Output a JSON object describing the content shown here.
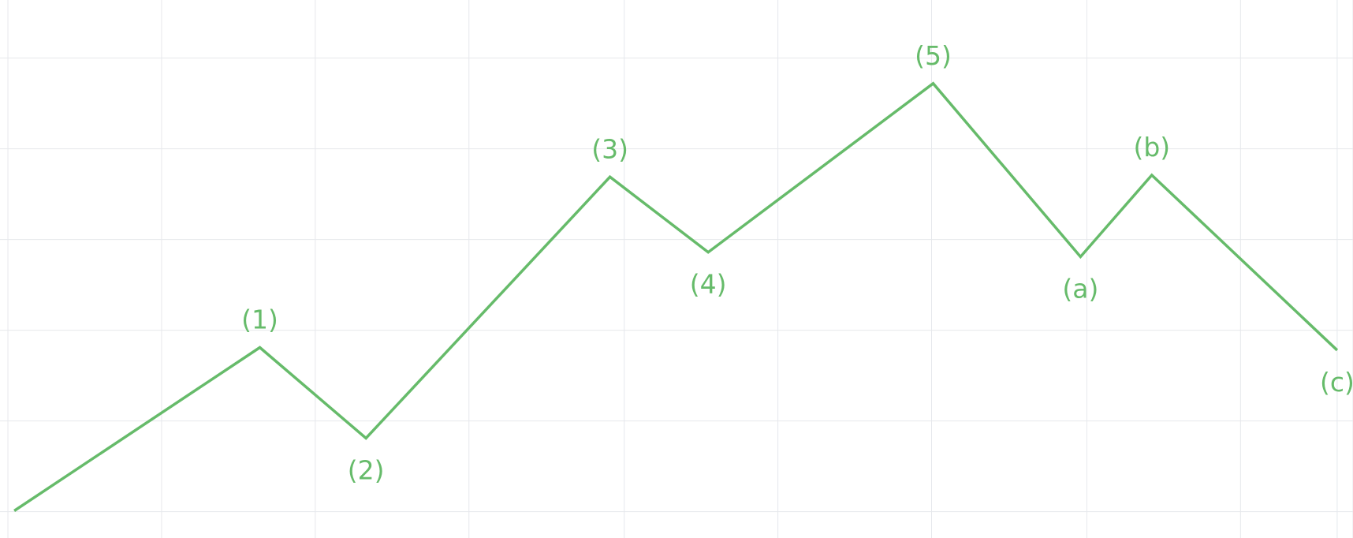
{
  "chart_data": {
    "type": "line",
    "title": "",
    "xlabel": "",
    "ylabel": "",
    "grid": true,
    "legend": "none",
    "axes_visible": false,
    "xlim": [
      0,
      8.54
    ],
    "ylim": [
      0,
      5.93
    ],
    "series": [
      {
        "color": "#66bb6a",
        "points": [
          {
            "x": 0.09,
            "y": 0.3,
            "label": ""
          },
          {
            "x": 1.64,
            "y": 2.1,
            "label": "(1)"
          },
          {
            "x": 2.31,
            "y": 1.1,
            "label": "(2)"
          },
          {
            "x": 3.85,
            "y": 3.98,
            "label": "(3)"
          },
          {
            "x": 4.47,
            "y": 3.15,
            "label": "(4)"
          },
          {
            "x": 5.89,
            "y": 5.01,
            "label": "(5)"
          },
          {
            "x": 6.82,
            "y": 3.1,
            "label": "(a)"
          },
          {
            "x": 7.27,
            "y": 4.0,
            "label": "(b)"
          },
          {
            "x": 8.44,
            "y": 2.07,
            "label": "(c)"
          }
        ]
      }
    ]
  }
}
